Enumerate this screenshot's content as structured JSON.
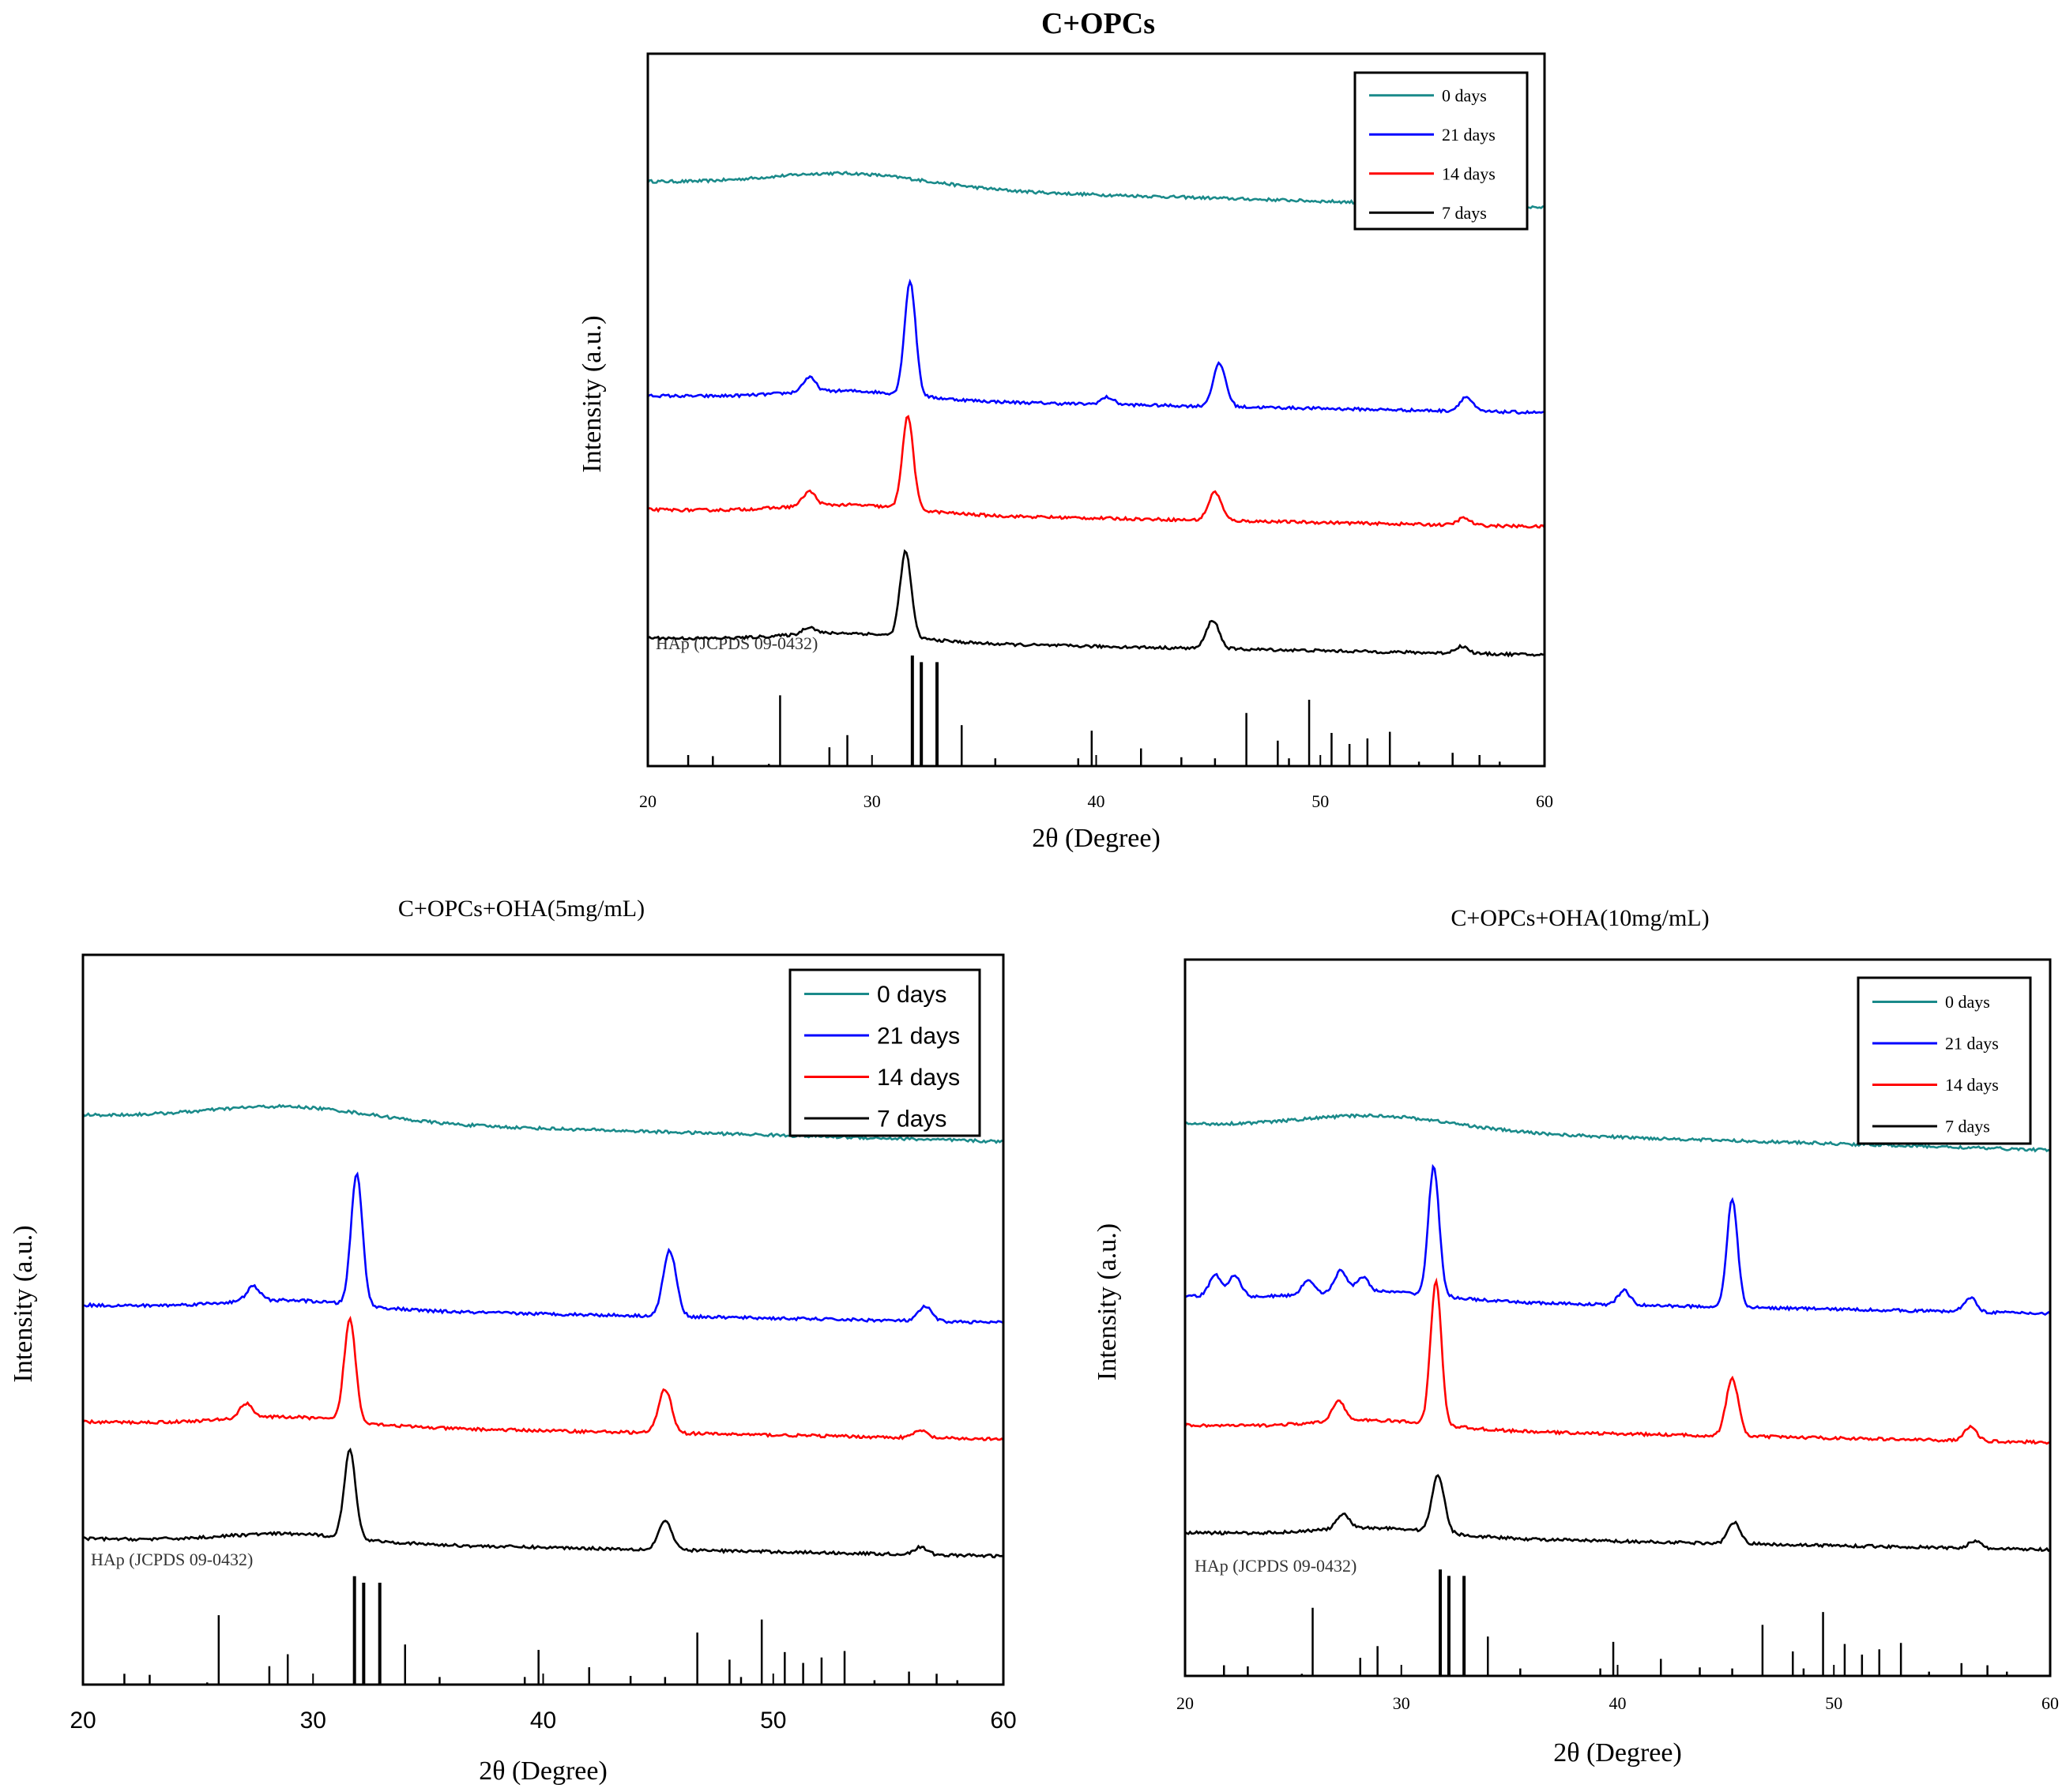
{
  "chart_data": [
    {
      "type": "line",
      "title": "C+OPCs",
      "xlabel": "2θ (Degree)",
      "ylabel": "Intensity (a.u.)",
      "xlim": [
        20,
        60
      ],
      "xticks": [
        "20",
        "30",
        "40",
        "50",
        "60"
      ],
      "legend_position": "top-right",
      "reference_label": "HAp (JCPDS 09-0432)",
      "series": [
        {
          "name": "0 days",
          "color": "#1a8a8a",
          "baseline": 0.82,
          "peaks": []
        },
        {
          "name": "21 days",
          "color": "#0000ff",
          "baseline": 0.52,
          "peaks": [
            [
              27.2,
              0.02
            ],
            [
              31.7,
              0.16
            ],
            [
              40.5,
              0.01
            ],
            [
              45.5,
              0.06
            ],
            [
              56.5,
              0.02
            ]
          ]
        },
        {
          "name": "14 days",
          "color": "#ff0000",
          "baseline": 0.36,
          "peaks": [
            [
              27.2,
              0.02
            ],
            [
              31.6,
              0.13
            ],
            [
              45.3,
              0.04
            ],
            [
              56.4,
              0.01
            ]
          ]
        },
        {
          "name": "7 days",
          "color": "#000000",
          "baseline": 0.18,
          "peaks": [
            [
              27.2,
              0.01
            ],
            [
              31.5,
              0.12
            ],
            [
              45.2,
              0.04
            ],
            [
              56.3,
              0.01
            ]
          ]
        }
      ]
    },
    {
      "type": "line",
      "title": "C+OPCs+OHA(5mg/mL)",
      "xlabel": "2θ (Degree)",
      "ylabel": "Intensity (a.u.)",
      "xlim": [
        20,
        60
      ],
      "xticks": [
        "20",
        "30",
        "40",
        "50",
        "60"
      ],
      "legend_position": "top-right",
      "reference_label": "HAp (JCPDS 09-0432)",
      "series": [
        {
          "name": "0 days",
          "color": "#1a8a8a",
          "baseline": 0.78,
          "peaks": []
        },
        {
          "name": "21 days",
          "color": "#0000ff",
          "baseline": 0.52,
          "peaks": [
            [
              27.4,
              0.02
            ],
            [
              31.9,
              0.18
            ],
            [
              45.5,
              0.09
            ],
            [
              56.6,
              0.02
            ]
          ]
        },
        {
          "name": "14 days",
          "color": "#ff0000",
          "baseline": 0.36,
          "peaks": [
            [
              27.1,
              0.02
            ],
            [
              31.6,
              0.14
            ],
            [
              45.3,
              0.06
            ],
            [
              56.4,
              0.01
            ]
          ]
        },
        {
          "name": "7 days",
          "color": "#000000",
          "baseline": 0.2,
          "peaks": [
            [
              31.6,
              0.12
            ],
            [
              45.3,
              0.04
            ],
            [
              56.4,
              0.01
            ]
          ]
        }
      ]
    },
    {
      "type": "line",
      "title": "C+OPCs+OHA(10mg/mL)",
      "xlabel": "2θ (Degree)",
      "ylabel": "Intensity (a.u.)",
      "xlim": [
        20,
        60
      ],
      "xticks": [
        "20",
        "30",
        "40",
        "50",
        "60"
      ],
      "legend_position": "top-right",
      "reference_label": "HAp (JCPDS 09-0432)",
      "series": [
        {
          "name": "0 days",
          "color": "#1a8a8a",
          "baseline": 0.77,
          "peaks": []
        },
        {
          "name": "21 days",
          "color": "#0000ff",
          "baseline": 0.53,
          "peaks": [
            [
              21.4,
              0.03
            ],
            [
              22.3,
              0.03
            ],
            [
              25.7,
              0.02
            ],
            [
              27.2,
              0.03
            ],
            [
              28.2,
              0.02
            ],
            [
              31.5,
              0.18
            ],
            [
              40.3,
              0.02
            ],
            [
              45.3,
              0.15
            ],
            [
              56.3,
              0.02
            ]
          ]
        },
        {
          "name": "14 days",
          "color": "#ff0000",
          "baseline": 0.35,
          "peaks": [
            [
              27.1,
              0.03
            ],
            [
              31.6,
              0.2
            ],
            [
              45.3,
              0.08
            ],
            [
              56.3,
              0.02
            ]
          ]
        },
        {
          "name": "7 days",
          "color": "#000000",
          "baseline": 0.2,
          "peaks": [
            [
              27.3,
              0.02
            ],
            [
              31.7,
              0.08
            ],
            [
              45.4,
              0.03
            ],
            [
              56.5,
              0.01
            ]
          ]
        }
      ]
    }
  ],
  "reference_pattern": {
    "name": "HAp (JCPDS 09-0432)",
    "lines": [
      [
        21.8,
        0.1
      ],
      [
        22.9,
        0.09
      ],
      [
        25.4,
        0.02
      ],
      [
        25.9,
        0.64
      ],
      [
        28.1,
        0.17
      ],
      [
        28.9,
        0.28
      ],
      [
        31.8,
        1.0
      ],
      [
        32.2,
        0.94
      ],
      [
        32.9,
        0.94
      ],
      [
        34.0,
        0.37
      ],
      [
        35.5,
        0.07
      ],
      [
        39.2,
        0.07
      ],
      [
        39.8,
        0.32
      ],
      [
        42.0,
        0.16
      ],
      [
        43.8,
        0.08
      ],
      [
        45.3,
        0.07
      ],
      [
        46.7,
        0.48
      ],
      [
        48.1,
        0.23
      ],
      [
        48.6,
        0.07
      ],
      [
        49.5,
        0.6
      ],
      [
        50.5,
        0.3
      ],
      [
        51.3,
        0.2
      ],
      [
        52.1,
        0.25
      ],
      [
        53.1,
        0.31
      ],
      [
        54.4,
        0.04
      ],
      [
        55.9,
        0.12
      ],
      [
        57.1,
        0.1
      ],
      [
        58.0,
        0.04
      ]
    ]
  }
}
